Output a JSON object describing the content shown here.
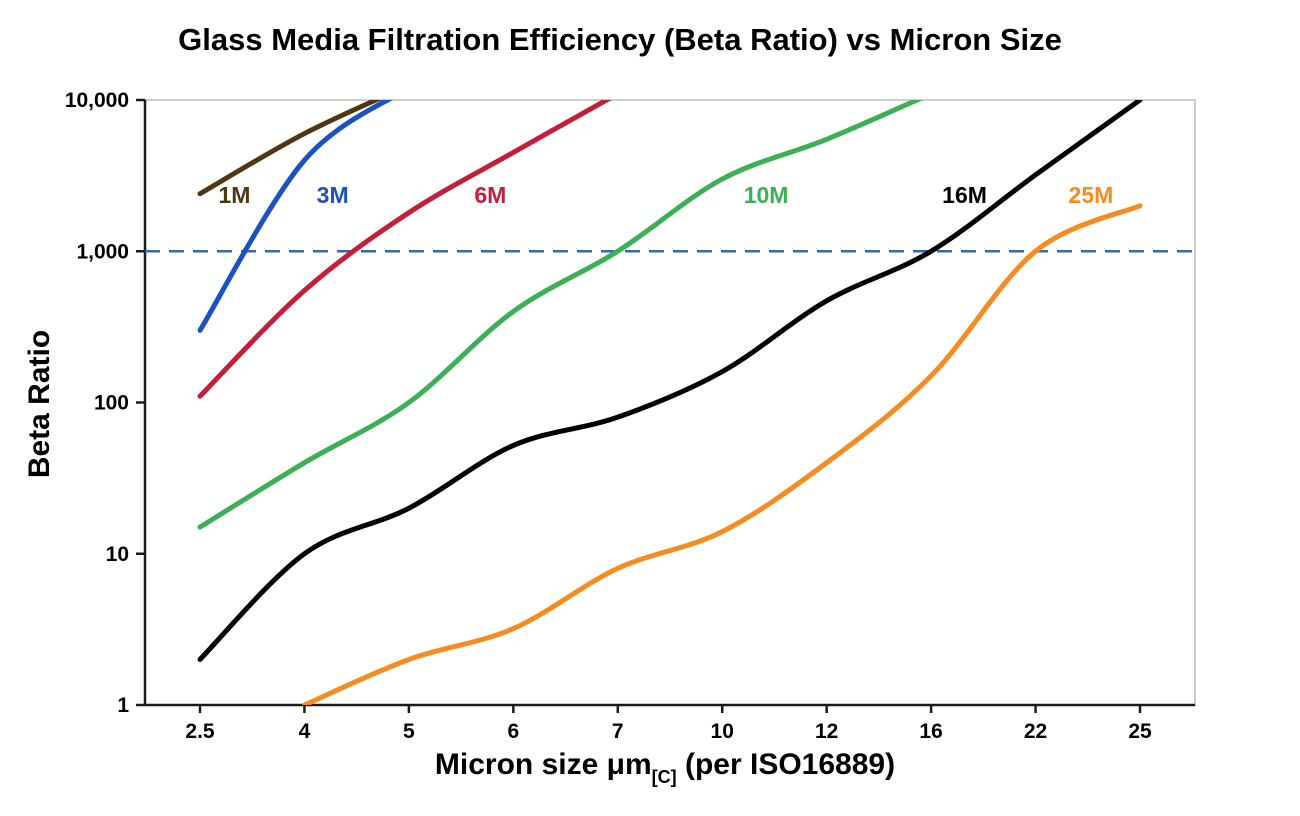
{
  "chart_data": {
    "type": "line",
    "title": "Glass Media Filtration Efficiency (Beta Ratio) vs Micron Size",
    "ylabel": "Beta Ratio",
    "xlabel": "Micron size μm[C] (per ISO16889)",
    "xlabel_parts": {
      "main": "Micron size μm",
      "sub": "[C]",
      "rest": " (per ISO16889)"
    },
    "x_tick_labels": [
      "2.5",
      "4",
      "5",
      "6",
      "7",
      "10",
      "12",
      "16",
      "22",
      "25"
    ],
    "x_categories": [
      2.5,
      4,
      5,
      6,
      7,
      10,
      12,
      16,
      22,
      25
    ],
    "y_scale": "log",
    "ylim": [
      1,
      10000
    ],
    "y_ticks": [
      1,
      10,
      100,
      1000,
      10000
    ],
    "y_tick_labels": [
      "1",
      "10",
      "100",
      "1,000",
      "10,000"
    ],
    "grid": false,
    "legend": "inline-curve-labels",
    "reference_line": {
      "value": 1000,
      "color": "#3B64AE",
      "style": "dashed"
    },
    "axis_color": "#1a1a1a",
    "frame_color": "#bdbdbd",
    "series": [
      {
        "name": "1M",
        "color": "#4F3714",
        "values": [
          2400,
          6000,
          12500,
          null,
          null,
          null,
          null,
          null,
          null,
          null
        ],
        "label_pos": {
          "ci": 0.33,
          "value": 2350
        }
      },
      {
        "name": "3M",
        "color": "#1A53C0",
        "values": [
          300,
          4000,
          12000,
          null,
          null,
          null,
          null,
          null,
          null,
          null
        ],
        "label_pos": {
          "ci": 1.27,
          "value": 2350
        }
      },
      {
        "name": "6M",
        "color": "#C41E3A",
        "values": [
          110,
          550,
          1800,
          4500,
          11000,
          null,
          null,
          null,
          null,
          null
        ],
        "label_pos": {
          "ci": 2.78,
          "value": 2350
        }
      },
      {
        "name": "10M",
        "color": "#3CB054",
        "values": [
          15,
          40,
          100,
          400,
          1000,
          3000,
          5500,
          11000,
          null,
          null
        ],
        "label_pos": {
          "ci": 5.42,
          "value": 2350
        }
      },
      {
        "name": "16M",
        "color": "#000000",
        "values": [
          2,
          10,
          20,
          52,
          80,
          160,
          470,
          1000,
          3200,
          10000
        ],
        "label_pos": {
          "ci": 7.32,
          "value": 2350
        }
      },
      {
        "name": "25M",
        "color": "#F68B1F",
        "values": [
          null,
          1,
          2,
          3.2,
          8,
          14,
          40,
          150,
          1000,
          2000
        ],
        "label_pos": {
          "ci": 8.53,
          "value": 2350
        }
      }
    ]
  }
}
